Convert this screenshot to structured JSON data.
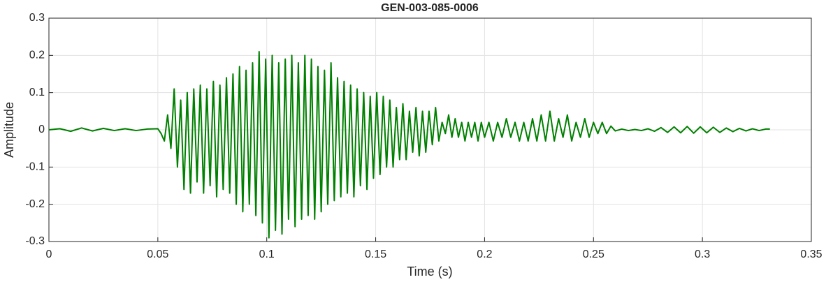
{
  "chart_data": {
    "type": "line",
    "title": "GEN-003-085-0006",
    "xlabel": "Time (s)",
    "ylabel": "Amplitude",
    "color": "#008000",
    "grid": true,
    "xlim": [
      0,
      0.35
    ],
    "xticks": [
      0,
      0.05,
      0.1,
      0.15,
      0.2,
      0.25,
      0.3,
      0.35
    ],
    "ylim": [
      -0.3,
      0.3
    ],
    "yticks": [
      -0.3,
      -0.2,
      -0.1,
      0,
      0.1,
      0.2,
      0.3
    ],
    "x": [
      0,
      0.005,
      0.01,
      0.015,
      0.02,
      0.025,
      0.03,
      0.035,
      0.04,
      0.045,
      0.05,
      0.0515,
      0.053,
      0.0545,
      0.056,
      0.0575,
      0.059,
      0.0605,
      0.062,
      0.0635,
      0.065,
      0.0665,
      0.068,
      0.0695,
      0.071,
      0.0725,
      0.074,
      0.0755,
      0.077,
      0.0785,
      0.08,
      0.0815,
      0.083,
      0.0845,
      0.086,
      0.0875,
      0.089,
      0.0905,
      0.092,
      0.0935,
      0.095,
      0.0965,
      0.098,
      0.0995,
      0.101,
      0.1025,
      0.104,
      0.1055,
      0.107,
      0.1085,
      0.11,
      0.1115,
      0.113,
      0.1145,
      0.116,
      0.1175,
      0.119,
      0.1205,
      0.122,
      0.1235,
      0.125,
      0.1265,
      0.128,
      0.1295,
      0.131,
      0.1325,
      0.134,
      0.1355,
      0.137,
      0.1385,
      0.14,
      0.1415,
      0.143,
      0.1445,
      0.146,
      0.1475,
      0.149,
      0.1505,
      0.152,
      0.1535,
      0.155,
      0.1565,
      0.158,
      0.1595,
      0.161,
      0.1625,
      0.164,
      0.1655,
      0.167,
      0.1685,
      0.17,
      0.1715,
      0.173,
      0.1745,
      0.176,
      0.1775,
      0.179,
      0.1805,
      0.182,
      0.1835,
      0.185,
      0.1865,
      0.188,
      0.1895,
      0.191,
      0.1925,
      0.194,
      0.1955,
      0.197,
      0.1985,
      0.2,
      0.202,
      0.204,
      0.206,
      0.208,
      0.21,
      0.212,
      0.214,
      0.216,
      0.218,
      0.22,
      0.222,
      0.224,
      0.226,
      0.228,
      0.23,
      0.232,
      0.234,
      0.236,
      0.238,
      0.24,
      0.242,
      0.244,
      0.246,
      0.248,
      0.25,
      0.252,
      0.254,
      0.256,
      0.258,
      0.26,
      0.263,
      0.266,
      0.269,
      0.272,
      0.275,
      0.278,
      0.281,
      0.284,
      0.287,
      0.29,
      0.293,
      0.296,
      0.299,
      0.302,
      0.305,
      0.308,
      0.311,
      0.314,
      0.317,
      0.32,
      0.323,
      0.326,
      0.329,
      0.331
    ],
    "values": [
      0,
      0.003,
      -0.004,
      0.005,
      -0.003,
      0.004,
      -0.002,
      0.003,
      -0.002,
      0.002,
      0.003,
      -0.01,
      -0.03,
      0.04,
      -0.05,
      0.11,
      -0.1,
      0.08,
      -0.16,
      0.1,
      -0.17,
      0.11,
      -0.14,
      0.12,
      -0.17,
      0.11,
      -0.15,
      0.13,
      -0.18,
      0.12,
      -0.16,
      0.14,
      -0.17,
      0.15,
      -0.2,
      0.17,
      -0.22,
      0.16,
      -0.2,
      0.18,
      -0.23,
      0.21,
      -0.25,
      0.19,
      -0.29,
      0.2,
      -0.27,
      0.18,
      -0.28,
      0.19,
      -0.24,
      0.2,
      -0.26,
      0.18,
      -0.24,
      0.2,
      -0.23,
      0.19,
      -0.24,
      0.17,
      -0.22,
      0.16,
      -0.2,
      0.18,
      -0.19,
      0.14,
      -0.18,
      0.13,
      -0.17,
      0.12,
      -0.18,
      0.11,
      -0.15,
      0.1,
      -0.16,
      0.09,
      -0.13,
      0.1,
      -0.12,
      0.09,
      -0.1,
      0.08,
      -0.1,
      0.06,
      -0.08,
      0.07,
      -0.08,
      0.05,
      -0.06,
      0.06,
      -0.07,
      0.05,
      -0.06,
      0.05,
      -0.04,
      0.06,
      -0.03,
      0.02,
      -0.01,
      0.04,
      -0.02,
      0.03,
      -0.02,
      0.02,
      -0.03,
      0.02,
      -0.02,
      0.02,
      -0.03,
      0.02,
      -0.02,
      0.02,
      -0.03,
      0.02,
      -0.02,
      0.03,
      -0.02,
      0.02,
      -0.03,
      0.02,
      -0.03,
      0.03,
      -0.03,
      0.04,
      -0.03,
      0.05,
      -0.03,
      0.03,
      -0.02,
      0.04,
      -0.03,
      0.02,
      -0.02,
      0.03,
      -0.02,
      0.02,
      -0.01,
      0.02,
      -0.01,
      0.01,
      -0.003,
      0.002,
      -0.002,
      0.001,
      -0.002,
      0.003,
      -0.004,
      0.006,
      -0.007,
      0.008,
      -0.008,
      0.009,
      -0.009,
      0.008,
      -0.008,
      0.007,
      -0.007,
      0.005,
      -0.005,
      0.004,
      -0.003,
      0.003,
      -0.002,
      0.002,
      0.002
    ]
  }
}
